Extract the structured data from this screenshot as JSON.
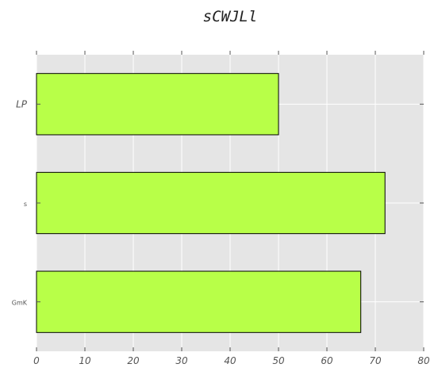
{
  "chart_data": {
    "type": "bar",
    "orientation": "horizontal",
    "title": "sCWJLl",
    "categories": [
      "GmK",
      "s",
      "LP"
    ],
    "values": [
      67,
      72,
      50
    ],
    "xlim": [
      0,
      80
    ],
    "xticks": [
      0,
      10,
      20,
      30,
      40,
      50,
      60,
      70,
      80
    ],
    "xlabel": "",
    "ylabel": "",
    "grid": true,
    "bar_color": "#b8ff48",
    "background_color": "#e5e5e5",
    "grid_color": "#ffffff",
    "edge_color": "#000000"
  }
}
